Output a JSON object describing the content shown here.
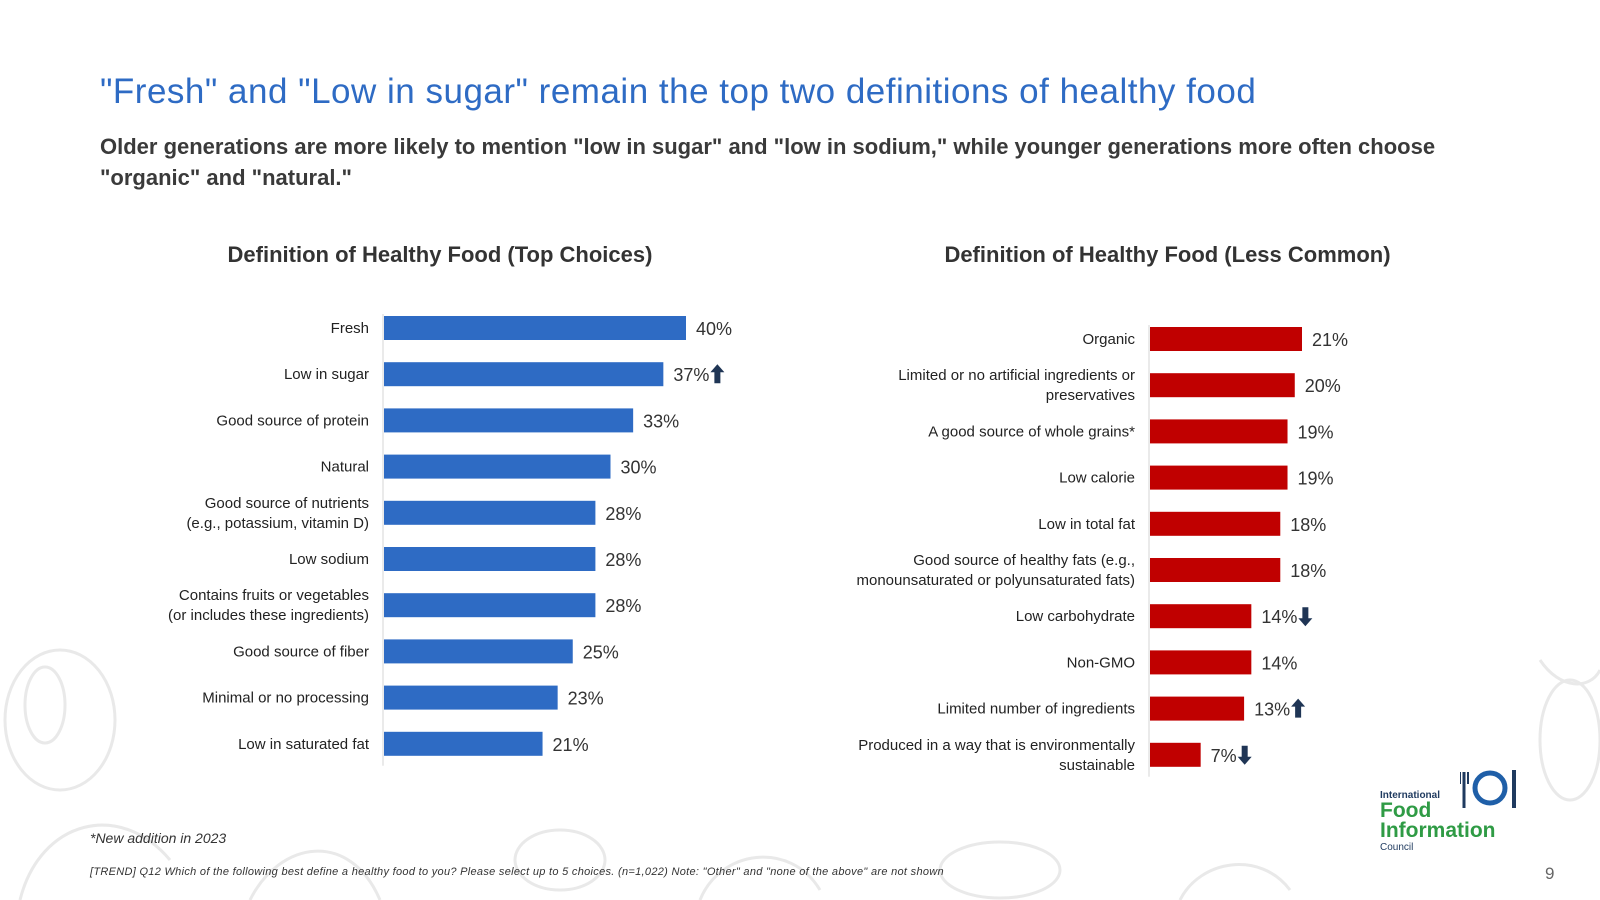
{
  "title": "\"Fresh\" and \"Low in sugar\" remain the top two definitions of healthy food",
  "subtitle": "Older generations are more likely to mention \"low in sugar\" and \"low in sodium,\" while younger generations more often choose \"organic\" and \"natural.\"",
  "colors": {
    "title": "#2e6bc4",
    "bar_left": "#2e6bc4",
    "bar_right": "#c00000",
    "arrow": "#1f3555"
  },
  "chart_data": [
    {
      "type": "bar",
      "orientation": "horizontal",
      "title": "Definition of Healthy Food (Top Choices)",
      "categories": [
        "Fresh",
        "Low in sugar",
        "Good source of protein",
        "Natural",
        "Good source of nutrients (e.g., potassium, vitamin D)",
        "Low sodium",
        "Contains fruits or vegetables (or includes these ingredients)",
        "Good source of fiber",
        "Minimal or no processing",
        "Low in saturated fat"
      ],
      "label_lines": [
        [
          "Fresh"
        ],
        [
          "Low in sugar"
        ],
        [
          "Good source of protein"
        ],
        [
          "Natural"
        ],
        [
          "Good source of nutrients",
          "(e.g., potassium, vitamin D)"
        ],
        [
          "Low sodium"
        ],
        [
          "Contains fruits or vegetables",
          "(or includes these ingredients)"
        ],
        [
          "Good source of fiber"
        ],
        [
          "Minimal or no processing"
        ],
        [
          "Low in saturated fat"
        ]
      ],
      "values": [
        40,
        37,
        33,
        30,
        28,
        28,
        28,
        25,
        23,
        21
      ],
      "value_labels": [
        "40%",
        "37%",
        "33%",
        "30%",
        "28%",
        "28%",
        "28%",
        "25%",
        "23%",
        "21%"
      ],
      "trend": [
        "",
        "up",
        "",
        "",
        "",
        "",
        "",
        "",
        "",
        ""
      ],
      "unit": "%",
      "xlim": [
        0,
        40
      ]
    },
    {
      "type": "bar",
      "orientation": "horizontal",
      "title": "Definition of Healthy Food (Less Common)",
      "categories": [
        "Organic",
        "Limited or no artificial ingredients or preservatives",
        "A good source of whole grains*",
        "Low calorie",
        "Low in total fat",
        "Good source of healthy fats (e.g., monounsaturated or polyunsaturated fats)",
        "Low carbohydrate",
        "Non-GMO",
        "Limited number of ingredients",
        "Produced in a way that is environmentally sustainable"
      ],
      "label_lines": [
        [
          "Organic"
        ],
        [
          "Limited or no artificial ingredients or",
          "preservatives"
        ],
        [
          "A good source of whole grains*"
        ],
        [
          "Low calorie"
        ],
        [
          "Low in total fat"
        ],
        [
          "Good source of healthy fats (e.g.,",
          "monounsaturated or polyunsaturated fats)"
        ],
        [
          "Low carbohydrate"
        ],
        [
          "Non-GMO"
        ],
        [
          "Limited number of ingredients"
        ],
        [
          "Produced in a way that is environmentally",
          "sustainable"
        ]
      ],
      "values": [
        21,
        20,
        19,
        19,
        18,
        18,
        14,
        14,
        13,
        7
      ],
      "value_labels": [
        "21%",
        "20%",
        "19%",
        "19%",
        "18%",
        "18%",
        "14%",
        "14%",
        "13%",
        "7%"
      ],
      "trend": [
        "",
        "",
        "",
        "",
        "",
        "",
        "down",
        "",
        "up",
        "down"
      ],
      "unit": "%",
      "xlim": [
        0,
        21
      ]
    }
  ],
  "footnote": "*New addition in 2023",
  "source": "[TREND] Q12 Which of the following best define a healthy food to you? Please select up to 5 choices. (n=1,022) Note: \"Other\" and \"none of the above\" are not shown",
  "page_number": "9",
  "logo": {
    "line1": "International",
    "line2": "Food",
    "line3": "Information",
    "line4": "Council"
  }
}
